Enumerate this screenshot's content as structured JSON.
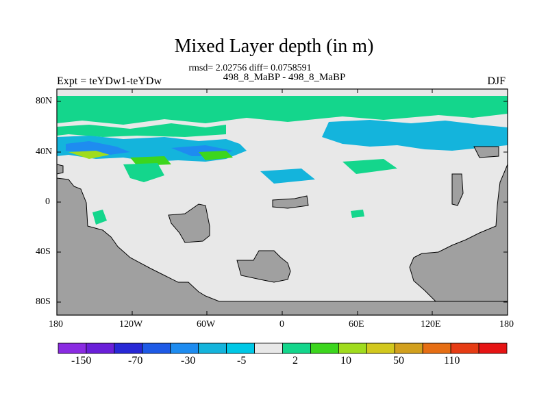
{
  "title": "Mixed Layer depth (in m)",
  "stats_line": "rmsd= 2.02756 diff= 0.0758591",
  "subtitle": "498_8_MaBP - 498_8_MaBP",
  "expt_label": "Expt = teYDw1-teYDw",
  "season": "DJF",
  "map": {
    "lat_ticks": [
      "80N",
      "40N",
      "0",
      "40S",
      "80S"
    ],
    "lon_ticks": [
      "180",
      "120W",
      "60W",
      "0",
      "60E",
      "120E",
      "180"
    ],
    "land_color": "#a0a0a0",
    "ocean_neutral_color": "#e8e8e8"
  },
  "colorbar": {
    "colors": [
      "#8a2be2",
      "#6a1fd9",
      "#2828d6",
      "#1e5ae6",
      "#1e8cf0",
      "#14b4dc",
      "#00c8e6",
      "#e8e8e8",
      "#14d68c",
      "#3cd61e",
      "#a0dc1e",
      "#d2c81e",
      "#d2a01e",
      "#e66e14",
      "#e63c14",
      "#e61414"
    ],
    "labels": [
      "-150",
      "-70",
      "-30",
      "-5",
      "2",
      "10",
      "50",
      "110"
    ]
  }
}
